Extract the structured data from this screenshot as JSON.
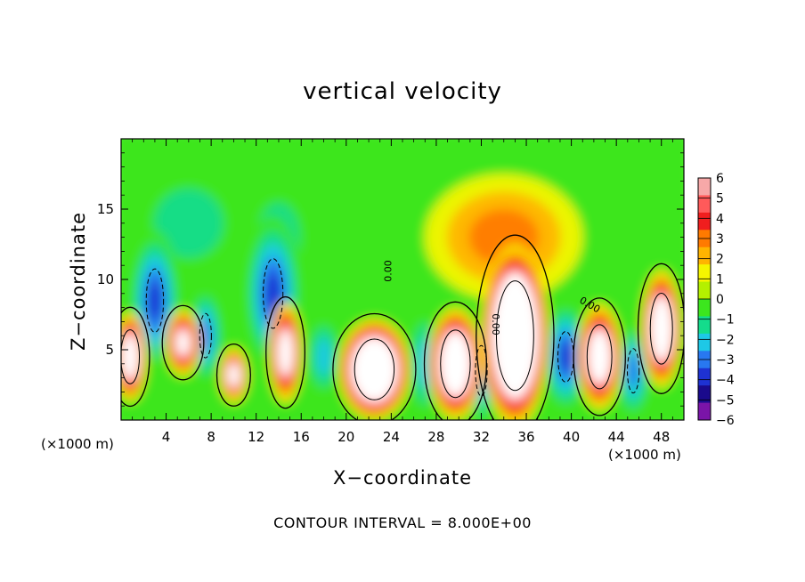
{
  "chart_data": {
    "type": "heatmap",
    "title": "vertical velocity",
    "xlabel": "X−coordinate",
    "ylabel": "Z−coordinate",
    "x_unit": "(×1000 m)",
    "x_unit_right": "(×1000 m)",
    "xlim": [
      0,
      50
    ],
    "ylim": [
      0,
      20
    ],
    "x_ticks": [
      4,
      8,
      12,
      16,
      20,
      24,
      28,
      32,
      36,
      40,
      44,
      48
    ],
    "x_tick_labels": [
      "4",
      "8",
      "12",
      "16",
      "20",
      "24",
      "28",
      "32",
      "36",
      "40",
      "44",
      "48"
    ],
    "y_ticks": [
      5,
      10,
      15
    ],
    "y_tick_labels": [
      "5",
      "10",
      "15"
    ],
    "colorbar": {
      "min": -6,
      "max": 6,
      "tick_labels": [
        "6",
        "5",
        "4",
        "3",
        "2",
        "1",
        "0",
        "−1",
        "−2",
        "−3",
        "−4",
        "−5",
        "−6"
      ],
      "colors": [
        "#f7a8a8",
        "#ff5a5a",
        "#f01e1e",
        "#ff7a00",
        "#ffb400",
        "#f5f500",
        "#b4f000",
        "#3ce61e",
        "#14dc8c",
        "#1ec8e6",
        "#2878f0",
        "#1e32d2",
        "#1a0a8c",
        "#7a14a8"
      ]
    },
    "contour_interval": "CONTOUR INTERVAL = 8.000E+00",
    "zero_contour_label": "0.00",
    "field_features": [
      {
        "kind": "updraft",
        "x": 0.8,
        "z": 4.5,
        "rx": 1.5,
        "rz": 3.2,
        "w": 10
      },
      {
        "kind": "updraft",
        "x": 5.5,
        "z": 5.5,
        "rx": 1.6,
        "rz": 2.4,
        "w": 8
      },
      {
        "kind": "updraft",
        "x": 10.0,
        "z": 3.2,
        "rx": 1.3,
        "rz": 2.0,
        "w": 7
      },
      {
        "kind": "updraft",
        "x": 14.6,
        "z": 4.8,
        "rx": 1.5,
        "rz": 3.6,
        "w": 9
      },
      {
        "kind": "updraft",
        "x": 22.5,
        "z": 3.6,
        "rx": 3.2,
        "rz": 3.6,
        "w": 14
      },
      {
        "kind": "updraft",
        "x": 29.7,
        "z": 4.0,
        "rx": 2.4,
        "rz": 4.0,
        "w": 12
      },
      {
        "kind": "updraft",
        "x": 35.0,
        "z": 6.0,
        "rx": 3.0,
        "rz": 6.5,
        "w": 16
      },
      {
        "kind": "updraft",
        "x": 42.5,
        "z": 4.5,
        "rx": 2.0,
        "rz": 3.8,
        "w": 10
      },
      {
        "kind": "updraft",
        "x": 48.0,
        "z": 6.5,
        "rx": 1.8,
        "rz": 4.2,
        "w": 11
      },
      {
        "kind": "downdraft",
        "x": 3.0,
        "z": 8.5,
        "rx": 2.2,
        "rz": 5.0,
        "w": -5
      },
      {
        "kind": "downdraft",
        "x": 7.5,
        "z": 6.0,
        "rx": 1.5,
        "rz": 3.5,
        "w": -4
      },
      {
        "kind": "downdraft",
        "x": 13.5,
        "z": 9.0,
        "rx": 2.5,
        "rz": 5.5,
        "w": -5
      },
      {
        "kind": "downdraft",
        "x": 18.0,
        "z": 4.5,
        "rx": 1.5,
        "rz": 3.0,
        "w": -3
      },
      {
        "kind": "downdraft",
        "x": 27.0,
        "z": 4.0,
        "rx": 1.5,
        "rz": 4.0,
        "w": -3
      },
      {
        "kind": "downdraft",
        "x": 32.0,
        "z": 3.5,
        "rx": 1.5,
        "rz": 4.0,
        "w": -4
      },
      {
        "kind": "downdraft",
        "x": 39.5,
        "z": 4.5,
        "rx": 2.0,
        "rz": 4.0,
        "w": -5
      },
      {
        "kind": "downdraft",
        "x": 45.5,
        "z": 3.5,
        "rx": 1.5,
        "rz": 3.5,
        "w": -4
      },
      {
        "kind": "upper_positive",
        "x": 34.0,
        "z": 13.0,
        "rx": 7.0,
        "rz": 4.5,
        "w": 2.5
      },
      {
        "kind": "upper_negative",
        "x": 6.0,
        "z": 14.0,
        "rx": 5.0,
        "rz": 4.0,
        "w": -2
      },
      {
        "kind": "upper_negative",
        "x": 14.0,
        "z": 13.0,
        "rx": 3.0,
        "rz": 4.0,
        "w": -2
      }
    ]
  }
}
